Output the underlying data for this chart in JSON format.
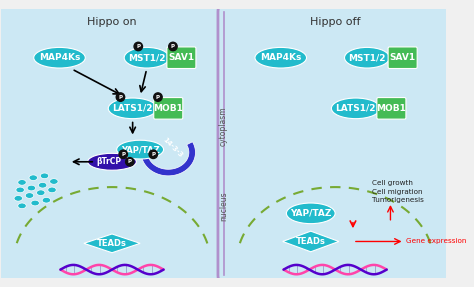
{
  "bg_color": "#f0f0f0",
  "cell_border_color": "#b090cc",
  "cell_fill_left": "#cce8f4",
  "cell_fill_right": "#cce8f4",
  "cyan_color": "#22bbcc",
  "green_color": "#44bb55",
  "purple_dark": "#2200cc",
  "btcp_color": "#3311aa",
  "scatter_color": "#22bbcc",
  "dna_pink": "#ff44aa",
  "dna_purple": "#5500cc",
  "nucleus_dash_color": "#77aa33",
  "divider_color": "#b090cc",
  "title_on": "Hippo on",
  "title_off": "Hippo off",
  "cytoplasm_label": "cytoplasm",
  "nucleus_label": "nucleus",
  "cell_growth_text": "Cell growth\nCell migration\nTumorigenesis",
  "gene_expr_text": "Gene expression"
}
